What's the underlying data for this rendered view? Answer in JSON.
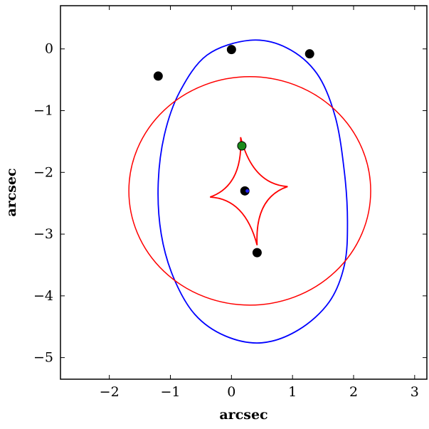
{
  "chart_data": {
    "type": "scatter",
    "xlabel": "arcsec",
    "ylabel": "arcsec",
    "xlim": [
      -2.8,
      3.2
    ],
    "ylim": [
      -5.35,
      0.7
    ],
    "xticks": [
      -2,
      -1,
      0,
      1,
      2,
      3
    ],
    "yticks": [
      0,
      -1,
      -2,
      -3,
      -4,
      -5
    ],
    "grid": false,
    "legend": "none",
    "series": [
      {
        "kind": "scatter",
        "color": "#000000",
        "points": [
          [
            -1.2,
            -0.44
          ],
          [
            0.0,
            -0.01
          ],
          [
            1.28,
            -0.08
          ],
          [
            0.42,
            -3.3
          ],
          [
            0.22,
            -2.3
          ]
        ]
      },
      {
        "kind": "scatter",
        "color": "#1f1fff",
        "points": [
          [
            0.26,
            -2.3
          ]
        ]
      },
      {
        "kind": "scatter",
        "color": "#1a8a1a",
        "points": [
          [
            0.17,
            -1.57
          ]
        ]
      }
    ],
    "curves": [
      {
        "kind": "ellipse",
        "color": "#0000ff",
        "points": [
          [
            0.3,
            0.14
          ],
          [
            0.9,
            0.02
          ],
          [
            1.4,
            -0.4
          ],
          [
            1.7,
            -1.1
          ],
          [
            1.85,
            -2.0
          ],
          [
            1.9,
            -2.8
          ],
          [
            1.85,
            -3.5
          ],
          [
            1.6,
            -4.1
          ],
          [
            1.1,
            -4.55
          ],
          [
            0.5,
            -4.76
          ],
          [
            -0.1,
            -4.65
          ],
          [
            -0.6,
            -4.3
          ],
          [
            -0.95,
            -3.7
          ],
          [
            -1.15,
            -3.0
          ],
          [
            -1.2,
            -2.2
          ],
          [
            -1.1,
            -1.4
          ],
          [
            -0.85,
            -0.7
          ],
          [
            -0.4,
            -0.1
          ]
        ]
      },
      {
        "kind": "circle",
        "color": "#ff0000",
        "center": [
          0.3,
          -2.3
        ],
        "radius_x": 1.98,
        "radius_y": 1.85
      },
      {
        "kind": "astroid",
        "color": "#ff0000",
        "points": [
          [
            0.15,
            -1.43
          ],
          [
            0.92,
            -2.23
          ],
          [
            0.42,
            -3.18
          ],
          [
            -0.35,
            -2.4
          ]
        ]
      }
    ]
  }
}
